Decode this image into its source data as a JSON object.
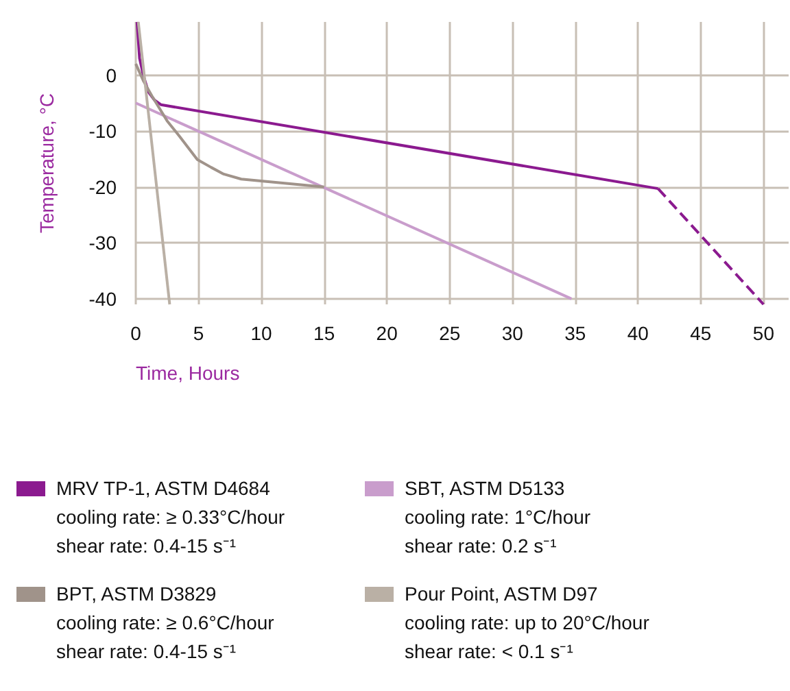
{
  "chart_data": {
    "type": "line",
    "xlabel": "Time, Hours",
    "ylabel": "Temperature, °C",
    "xlim": [
      0,
      52
    ],
    "ylim": [
      -41,
      9.5
    ],
    "xticks": [
      0,
      5,
      10,
      15,
      20,
      25,
      30,
      35,
      40,
      45,
      50
    ],
    "yticks": [
      0,
      -10,
      -20,
      -30,
      -40
    ],
    "grid": true,
    "legend": "bottom",
    "line_style": "solid",
    "marker": "none",
    "series": [
      {
        "name": "MRV TP-1, ASTM D4684",
        "color": "#8b1a8f",
        "x": [
          0.1,
          0.3,
          0.6,
          1,
          1.5,
          2,
          41.6
        ],
        "values": [
          9.5,
          3,
          0,
          -3,
          -4.5,
          -5.3,
          -20.3
        ]
      },
      {
        "color": "#8b1a8f",
        "line_style": "dashed",
        "x": [
          41.6,
          50
        ],
        "values": [
          -20.3,
          -41
        ]
      },
      {
        "name": "SBT, ASTM D5133",
        "color": "#c99dcc",
        "x": [
          0,
          34.7
        ],
        "values": [
          -5,
          -40
        ]
      },
      {
        "name": "BPT, ASTM D3829",
        "color": "#a0938a",
        "x": [
          0,
          0.6,
          1.3,
          2.5,
          3.5,
          4.9,
          6,
          7,
          8.4,
          15
        ],
        "values": [
          2,
          -1,
          -3.8,
          -8.2,
          -11,
          -15.1,
          -16.5,
          -17.7,
          -18.6,
          -20
        ]
      },
      {
        "name": "Pour Point, ASTM D97",
        "color": "#bab0a5",
        "x": [
          0.2,
          2.7
        ],
        "values": [
          9.5,
          -41
        ]
      }
    ],
    "annotations": [
      "cooling rate: ≥ 0.33°C/hour",
      "shear rate: 0.4-15 s⁻¹",
      "cooling rate: 1°C/hour",
      "shear rate: 0.2 s⁻¹",
      "cooling rate: ≥ 0.6°C/hour",
      "shear rate: 0.4-15 s⁻¹",
      "cooling rate: up to 20°C/hour",
      "shear rate: < 0.1 s⁻¹"
    ]
  }
}
